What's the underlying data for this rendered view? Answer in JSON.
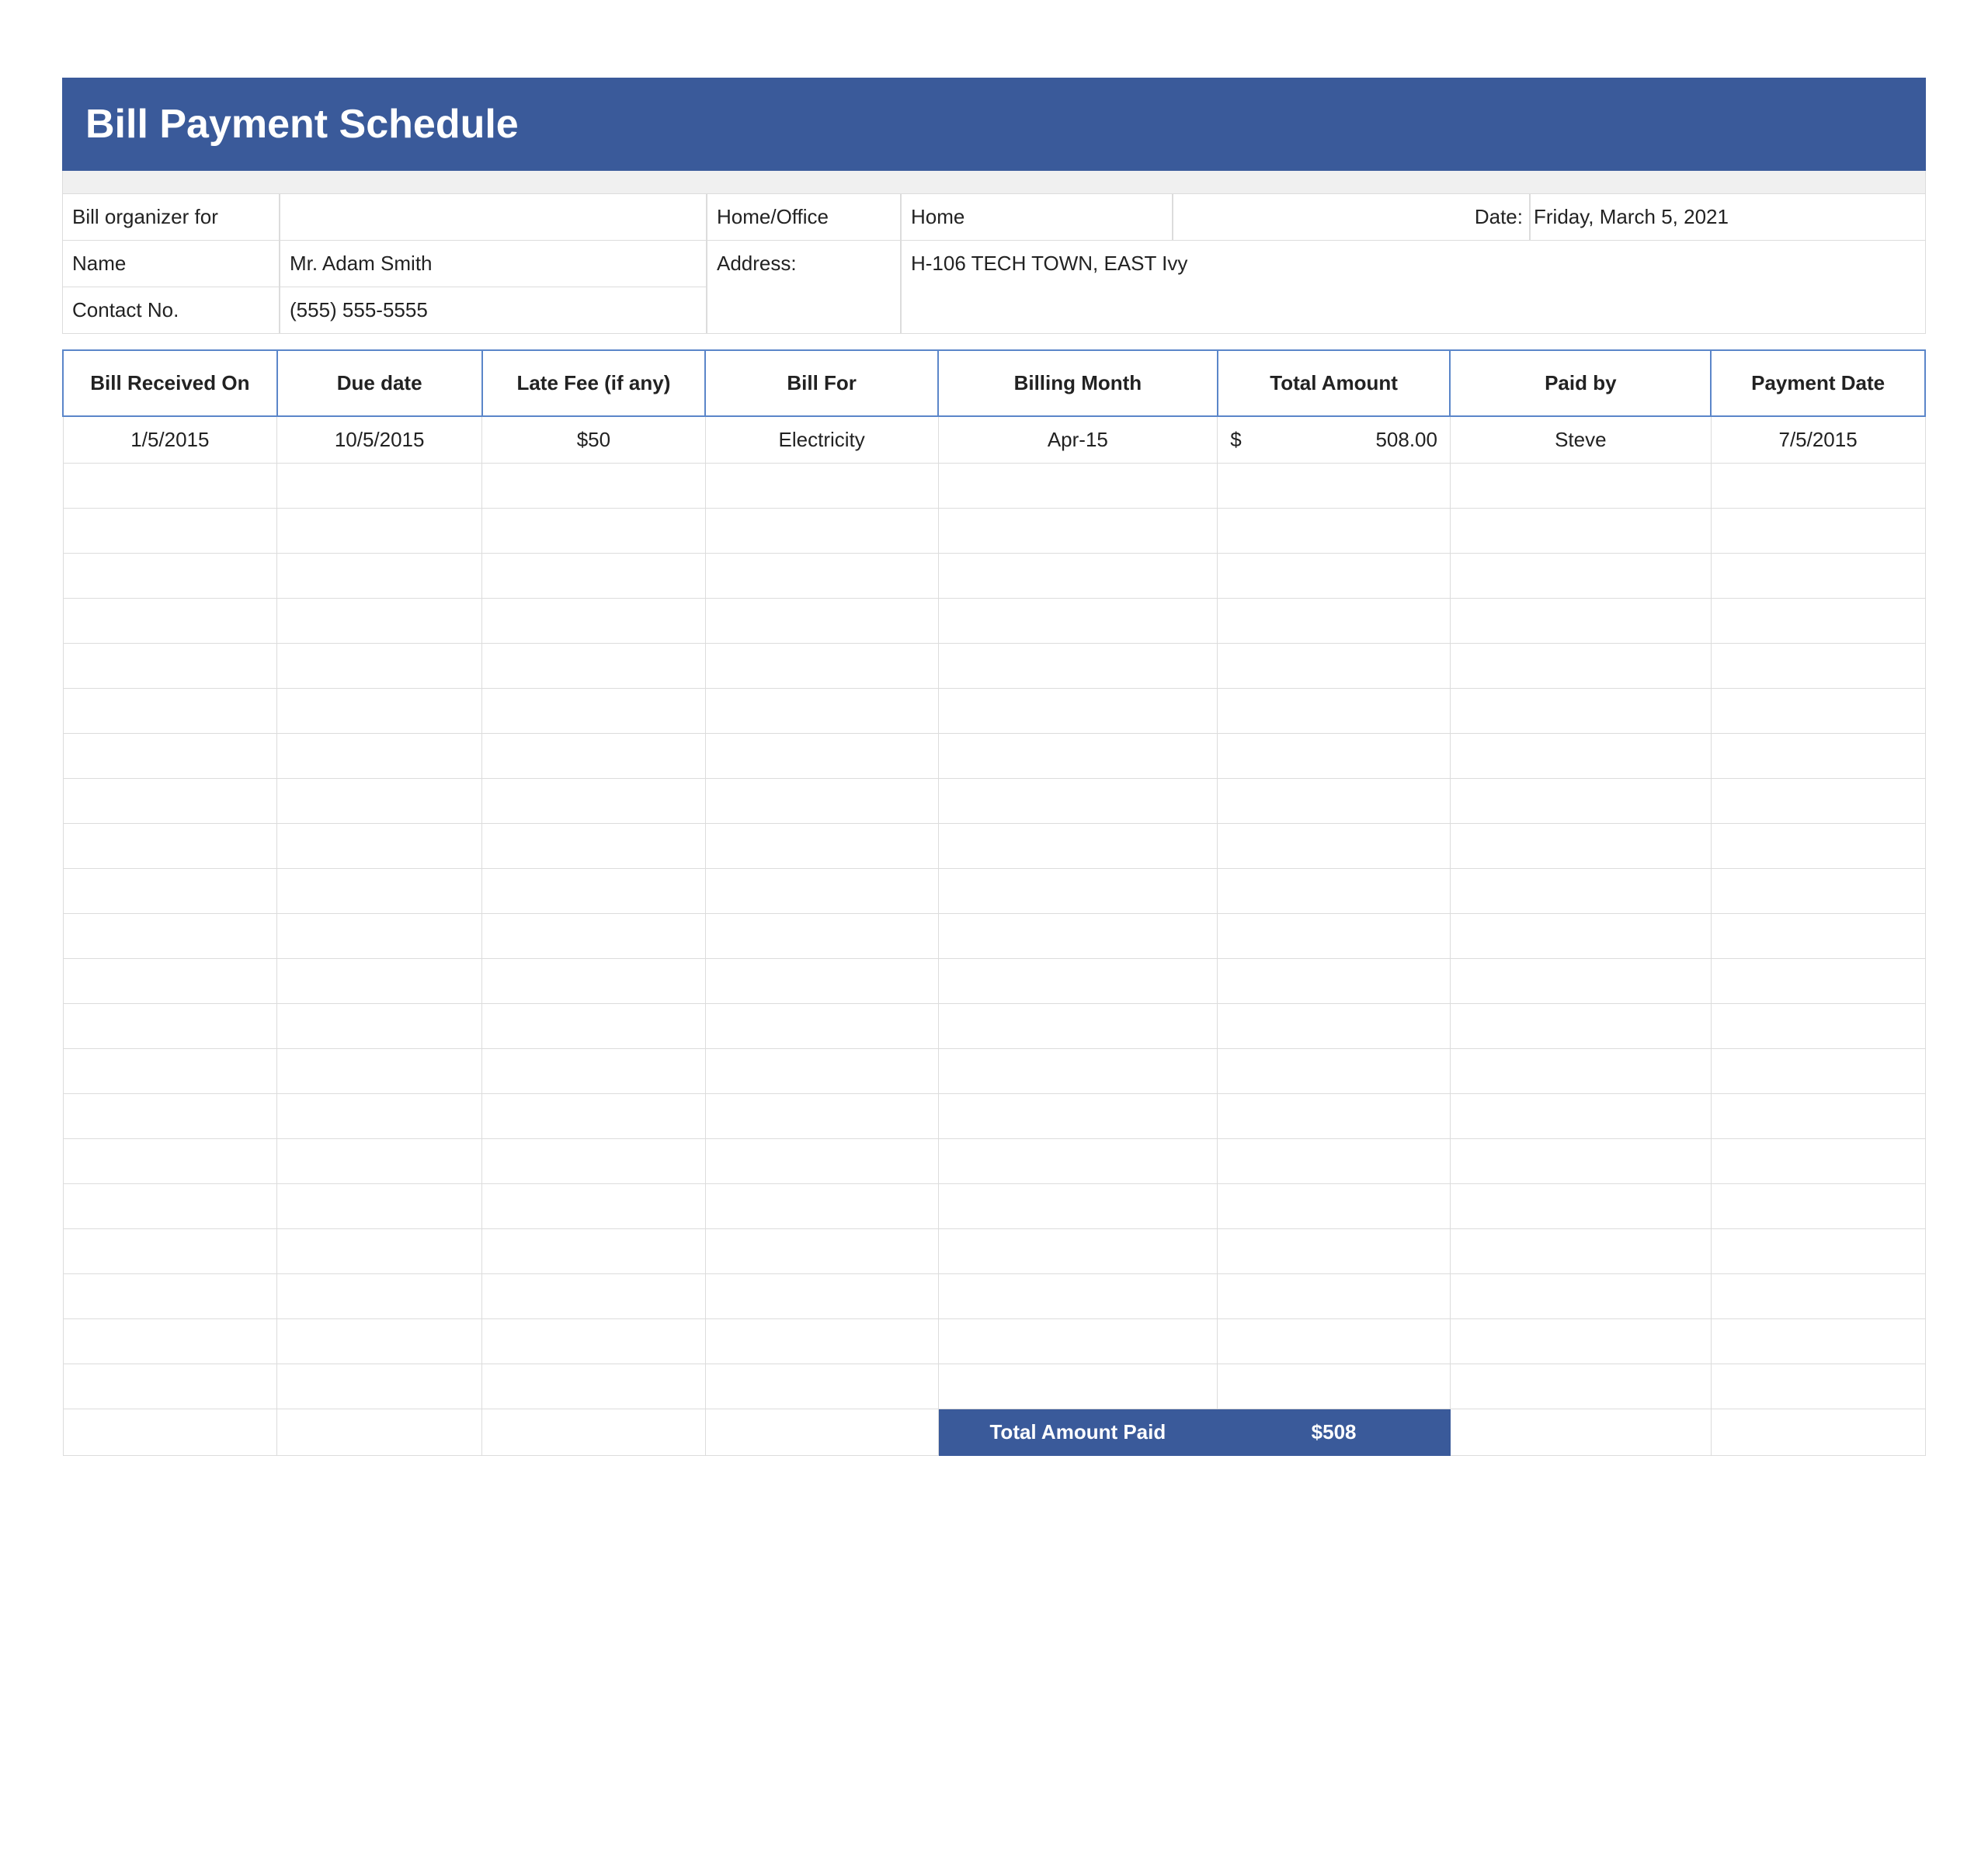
{
  "title": "Bill Payment Schedule",
  "colors": {
    "primary": "#3a5a9a",
    "border": "#dcdcdc",
    "header_border": "#5b86c9",
    "gray_strip": "#f0f0f0",
    "text": "#222222",
    "white": "#ffffff"
  },
  "info": {
    "labels": {
      "organizer": "Bill organizer for",
      "home_office": "Home/Office",
      "date": "Date:",
      "name": "Name",
      "address": "Address:",
      "contact": "Contact No."
    },
    "values": {
      "organizer": "",
      "home_office": "Home",
      "date": "Friday, March 5, 2021",
      "name": "Mr. Adam Smith",
      "address": "H-106 TECH TOWN, EAST Ivy",
      "contact": "(555) 555-5555"
    }
  },
  "schedule": {
    "columns": [
      "Bill Received On",
      "Due date",
      "Late Fee (if any)",
      "Bill For",
      "Billing Month",
      "Total Amount",
      "Paid by",
      "Payment Date"
    ],
    "column_widths_pct": [
      11.5,
      11.0,
      12.0,
      12.5,
      15.0,
      12.5,
      14.0,
      11.5
    ],
    "rows": [
      {
        "received": "1/5/2015",
        "due": "10/5/2015",
        "late_fee": "$50",
        "bill_for": "Electricity",
        "billing_month": "Apr-15",
        "amount_symbol": "$",
        "amount_value": "508.00",
        "paid_by": "Steve",
        "payment_date": "7/5/2015"
      }
    ],
    "empty_row_count": 21,
    "total_label": "Total Amount Paid",
    "total_value": "$508"
  }
}
